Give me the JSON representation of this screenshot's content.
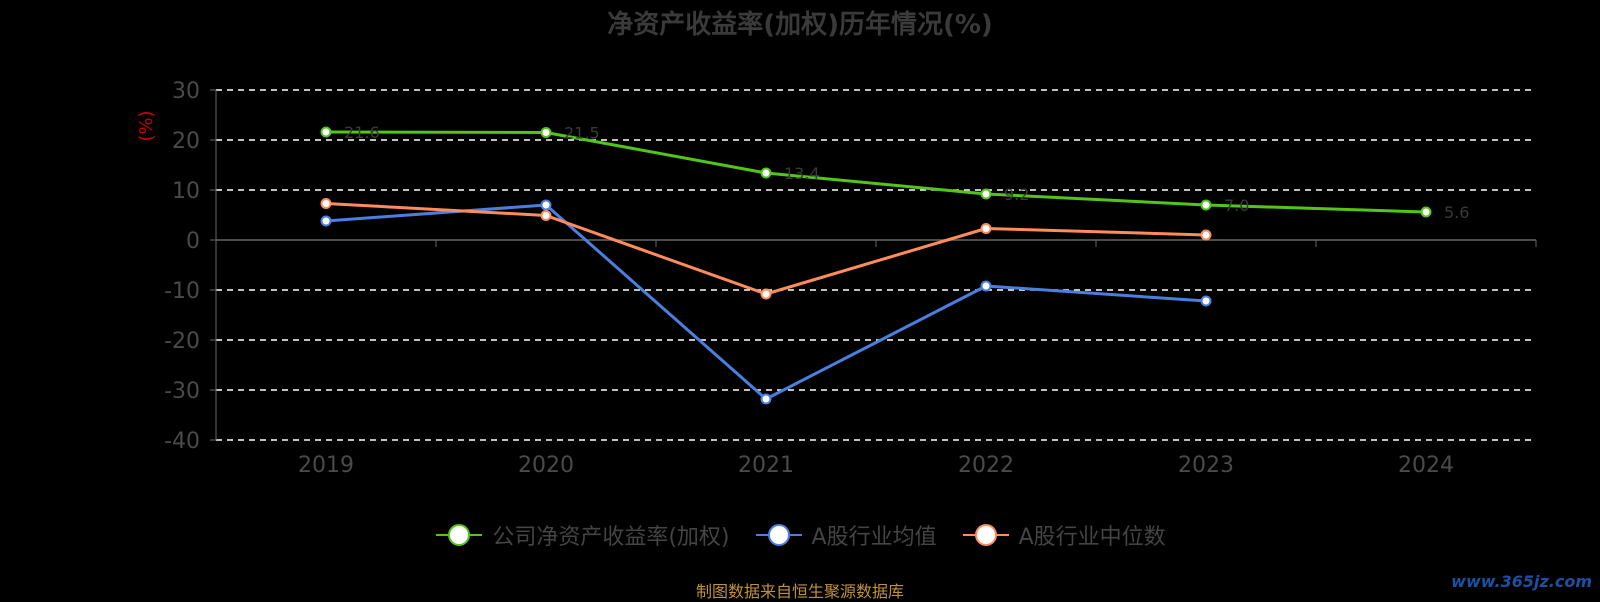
{
  "chart_data": {
    "type": "line",
    "title": "净资产收益率(加权)历年情况(%)",
    "ylabel": "(%)",
    "x": [
      "2019",
      "2020",
      "2021",
      "2022",
      "2023",
      "2024"
    ],
    "ylim": [
      -40,
      30
    ],
    "yticks": [
      30,
      20,
      10,
      0,
      -10,
      -20,
      -30,
      -40
    ],
    "grid": true,
    "legend_position": "bottom",
    "series": [
      {
        "name": "公司净资产收益率(加权)",
        "color": "#52c41a",
        "values": [
          21.6,
          21.5,
          13.4,
          9.2,
          7.0,
          5.6
        ],
        "labels": [
          "21.6",
          "21.5",
          "13.4",
          "9.2",
          "7.0",
          "5.6"
        ]
      },
      {
        "name": "A股行业均值",
        "color": "#4a7fe0",
        "values": [
          3.8,
          7.0,
          -31.8,
          -9.2,
          -12.2,
          null
        ]
      },
      {
        "name": "A股行业中位数",
        "color": "#ff8c5a",
        "values": [
          7.3,
          4.9,
          -10.8,
          2.3,
          1.0,
          null
        ]
      }
    ]
  },
  "footer": {
    "source": "制图数据来自恒生聚源数据库",
    "watermark": "www.365jz.com"
  }
}
